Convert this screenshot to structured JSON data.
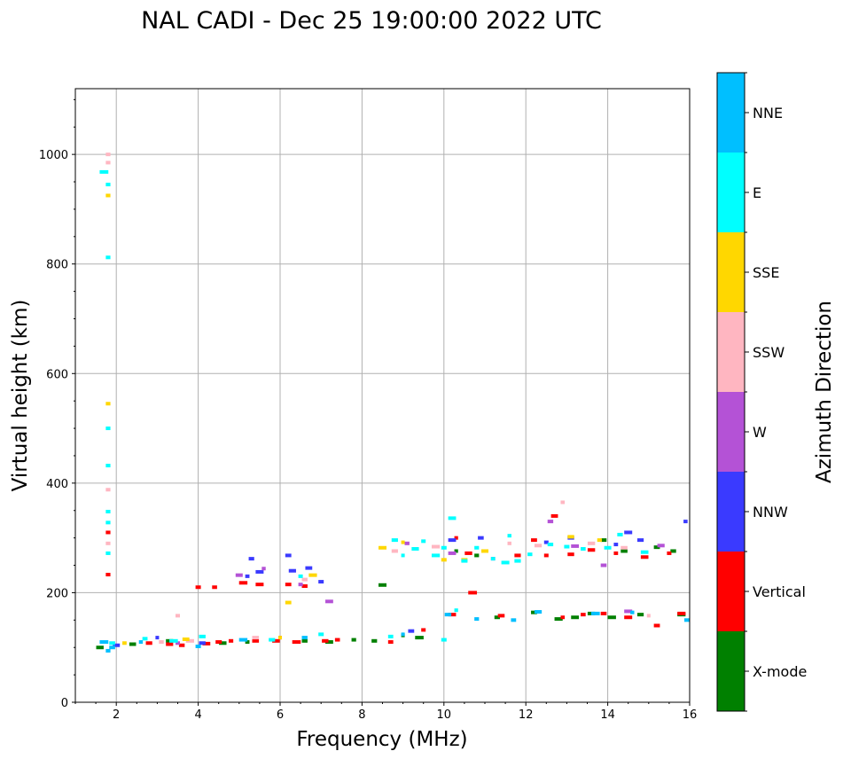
{
  "chart_data": {
    "type": "scatter",
    "title": "NAL CADI - Dec 25 19:00:00 2022 UTC",
    "xlabel": "Frequency (MHz)",
    "ylabel": "Virtual height (km)",
    "xlim": [
      1.0,
      16.0
    ],
    "ylim": [
      0,
      1120
    ],
    "xticks": [
      2,
      4,
      6,
      8,
      10,
      12,
      14,
      16
    ],
    "yticks": [
      0,
      200,
      400,
      600,
      800,
      1000
    ],
    "grid": true,
    "colorbar": {
      "label": "Azimuth Direction",
      "categories": [
        "X-mode",
        "Vertical",
        "NNW",
        "W",
        "SSW",
        "SSE",
        "E",
        "NNE"
      ],
      "colors": [
        "#008000",
        "#ff0000",
        "#3a3aff",
        "#b452d6",
        "#ffb6c1",
        "#ffd700",
        "#00ffff",
        "#00bfff"
      ]
    },
    "series": [
      {
        "name": "X-mode",
        "points": [
          [
            1.6,
            100
          ],
          [
            2.4,
            106
          ],
          [
            3.3,
            112
          ],
          [
            4.6,
            108
          ],
          [
            5.2,
            110
          ],
          [
            6.6,
            112
          ],
          [
            7.2,
            110
          ],
          [
            7.8,
            114
          ],
          [
            8.3,
            112
          ],
          [
            8.5,
            214
          ],
          [
            9.0,
            122
          ],
          [
            9.4,
            118
          ],
          [
            10.3,
            276
          ],
          [
            10.8,
            268
          ],
          [
            11.3,
            155
          ],
          [
            12.2,
            164
          ],
          [
            12.8,
            152
          ],
          [
            13.2,
            155
          ],
          [
            13.6,
            162
          ],
          [
            14.1,
            155
          ],
          [
            14.4,
            276
          ],
          [
            14.8,
            160
          ],
          [
            15.2,
            283
          ],
          [
            15.6,
            276
          ],
          [
            15.8,
            160
          ],
          [
            13.9,
            296
          ]
        ]
      },
      {
        "name": "Vertical",
        "points": [
          [
            1.8,
            233
          ],
          [
            1.8,
            310
          ],
          [
            2.8,
            108
          ],
          [
            3.3,
            106
          ],
          [
            3.6,
            104
          ],
          [
            4.0,
            210
          ],
          [
            4.2,
            107
          ],
          [
            4.4,
            210
          ],
          [
            4.8,
            112
          ],
          [
            5.1,
            218
          ],
          [
            5.4,
            112
          ],
          [
            5.5,
            215
          ],
          [
            5.9,
            112
          ],
          [
            6.2,
            215
          ],
          [
            6.4,
            110
          ],
          [
            6.6,
            212
          ],
          [
            7.1,
            112
          ],
          [
            7.4,
            114
          ],
          [
            8.7,
            110
          ],
          [
            9.5,
            132
          ],
          [
            10.2,
            160
          ],
          [
            10.3,
            300
          ],
          [
            10.6,
            272
          ],
          [
            10.7,
            200
          ],
          [
            11.4,
            158
          ],
          [
            11.8,
            268
          ],
          [
            12.2,
            296
          ],
          [
            12.5,
            268
          ],
          [
            12.7,
            340
          ],
          [
            12.9,
            155
          ],
          [
            13.1,
            270
          ],
          [
            13.4,
            160
          ],
          [
            13.6,
            278
          ],
          [
            13.9,
            162
          ],
          [
            14.2,
            272
          ],
          [
            14.5,
            155
          ],
          [
            14.9,
            265
          ],
          [
            15.2,
            140
          ],
          [
            15.5,
            272
          ],
          [
            15.8,
            162
          ],
          [
            6.0,
            118
          ],
          [
            4.5,
            110
          ]
        ]
      },
      {
        "name": "NNW",
        "points": [
          [
            2.0,
            104
          ],
          [
            3.0,
            118
          ],
          [
            4.1,
            108
          ],
          [
            5.2,
            230
          ],
          [
            5.3,
            262
          ],
          [
            5.5,
            238
          ],
          [
            6.2,
            268
          ],
          [
            6.3,
            240
          ],
          [
            6.7,
            245
          ],
          [
            7.0,
            220
          ],
          [
            9.2,
            130
          ],
          [
            10.2,
            296
          ],
          [
            10.9,
            300
          ],
          [
            12.5,
            292
          ],
          [
            13.1,
            300
          ],
          [
            14.2,
            288
          ],
          [
            14.5,
            310
          ],
          [
            14.8,
            296
          ],
          [
            15.9,
            330
          ]
        ]
      },
      {
        "name": "W",
        "points": [
          [
            3.5,
            108
          ],
          [
            5.0,
            232
          ],
          [
            5.6,
            244
          ],
          [
            6.5,
            215
          ],
          [
            7.2,
            184
          ],
          [
            9.1,
            290
          ],
          [
            10.2,
            272
          ],
          [
            11.2,
            262
          ],
          [
            12.6,
            330
          ],
          [
            13.2,
            285
          ],
          [
            13.9,
            250
          ],
          [
            14.5,
            166
          ],
          [
            15.3,
            286
          ]
        ]
      },
      {
        "name": "SSW",
        "points": [
          [
            1.8,
            1000
          ],
          [
            1.8,
            985
          ],
          [
            1.8,
            388
          ],
          [
            1.8,
            290
          ],
          [
            3.1,
            110
          ],
          [
            3.5,
            158
          ],
          [
            3.8,
            112
          ],
          [
            5.4,
            118
          ],
          [
            6.6,
            224
          ],
          [
            8.8,
            276
          ],
          [
            9.8,
            284
          ],
          [
            11.6,
            290
          ],
          [
            12.3,
            286
          ],
          [
            12.9,
            365
          ],
          [
            13.6,
            290
          ],
          [
            14.4,
            282
          ],
          [
            15.0,
            158
          ]
        ]
      },
      {
        "name": "SSE",
        "points": [
          [
            1.8,
            925
          ],
          [
            1.8,
            545
          ],
          [
            2.2,
            108
          ],
          [
            3.7,
            115
          ],
          [
            6.0,
            118
          ],
          [
            6.2,
            182
          ],
          [
            6.8,
            232
          ],
          [
            8.5,
            282
          ],
          [
            9.0,
            292
          ],
          [
            10.0,
            260
          ],
          [
            10.5,
            260
          ],
          [
            11.0,
            276
          ],
          [
            13.1,
            302
          ],
          [
            13.8,
            296
          ]
        ]
      },
      {
        "name": "E",
        "points": [
          [
            1.7,
            968
          ],
          [
            1.8,
            945
          ],
          [
            1.8,
            812
          ],
          [
            1.8,
            500
          ],
          [
            1.8,
            432
          ],
          [
            1.8,
            348
          ],
          [
            1.8,
            328
          ],
          [
            1.8,
            272
          ],
          [
            1.9,
            108
          ],
          [
            2.7,
            116
          ],
          [
            3.4,
            112
          ],
          [
            4.1,
            120
          ],
          [
            5.8,
            114
          ],
          [
            6.5,
            230
          ],
          [
            7.0,
            124
          ],
          [
            8.7,
            120
          ],
          [
            8.8,
            296
          ],
          [
            9.0,
            268
          ],
          [
            9.3,
            280
          ],
          [
            9.5,
            294
          ],
          [
            9.8,
            268
          ],
          [
            10.0,
            282
          ],
          [
            10.0,
            114
          ],
          [
            10.2,
            336
          ],
          [
            10.3,
            168
          ],
          [
            10.5,
            258
          ],
          [
            10.8,
            282
          ],
          [
            11.2,
            262
          ],
          [
            11.5,
            255
          ],
          [
            11.6,
            304
          ],
          [
            11.8,
            258
          ],
          [
            12.1,
            270
          ],
          [
            12.6,
            288
          ],
          [
            13.0,
            284
          ],
          [
            13.4,
            280
          ],
          [
            14.0,
            282
          ],
          [
            14.3,
            306
          ],
          [
            14.9,
            274
          ]
        ]
      },
      {
        "name": "NNE",
        "points": [
          [
            1.7,
            110
          ],
          [
            1.8,
            94
          ],
          [
            1.9,
            100
          ],
          [
            2.6,
            110
          ],
          [
            4.0,
            102
          ],
          [
            5.1,
            114
          ],
          [
            6.6,
            118
          ],
          [
            9.0,
            124
          ],
          [
            10.1,
            160
          ],
          [
            10.8,
            152
          ],
          [
            11.7,
            150
          ],
          [
            12.3,
            165
          ],
          [
            13.7,
            162
          ],
          [
            14.6,
            164
          ],
          [
            16.0,
            150
          ]
        ]
      }
    ]
  }
}
